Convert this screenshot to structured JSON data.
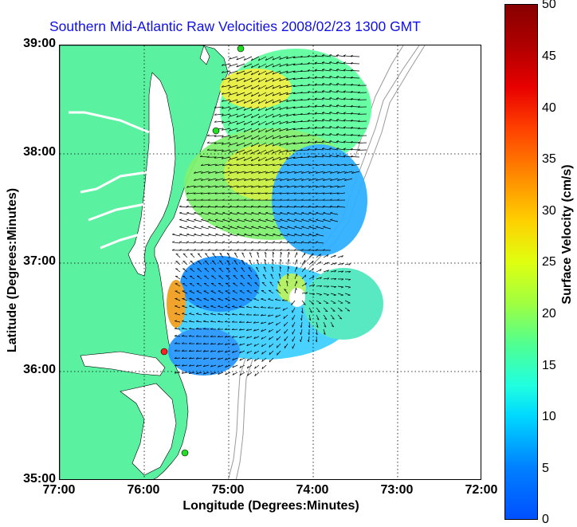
{
  "title": "Southern Mid-Atlantic Raw Velocities 2008/02/23 1300 GMT",
  "x_axis": {
    "label": "Longitude (Degrees:Minutes)",
    "ticks": [
      "77:00",
      "76:00",
      "75:00",
      "74:00",
      "73:00",
      "72:00"
    ]
  },
  "y_axis": {
    "label": "Latitude (Degrees:Minutes)",
    "ticks": [
      "39:00",
      "38:00",
      "37:00",
      "36:00",
      "35:00"
    ]
  },
  "colorbar": {
    "label": "Surface Velocity (cm/s)",
    "ticks": [
      "50",
      "45",
      "40",
      "35",
      "30",
      "25",
      "20",
      "15",
      "10",
      "5",
      "0"
    ],
    "min": 0,
    "max": 50
  },
  "map": {
    "lon_range": [
      -77,
      -72
    ],
    "lat_range": [
      35,
      39
    ],
    "grid": true,
    "land_color": "#5af2a0",
    "water_color": "#ffffff",
    "bathymetry_color": "#9a9a9a",
    "station_colors": [
      "#22dd22",
      "#ff2020"
    ]
  }
}
